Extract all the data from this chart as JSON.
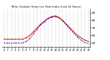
{
  "title": "Milw. Outdoor Temp (vs) Heat Index (Last 24 Hours)",
  "background_color": "#ffffff",
  "grid_color": "#888888",
  "hours": [
    0,
    1,
    2,
    3,
    4,
    5,
    6,
    7,
    8,
    9,
    10,
    11,
    12,
    13,
    14,
    15,
    16,
    17,
    18,
    19,
    20,
    21,
    22,
    23
  ],
  "temp": [
    55,
    55,
    55,
    55,
    55,
    55,
    57,
    60,
    65,
    70,
    75,
    79,
    83,
    85,
    86,
    84,
    80,
    75,
    70,
    65,
    60,
    57,
    54,
    52
  ],
  "heat_index": [
    50,
    50,
    50,
    50,
    50,
    50,
    52,
    56,
    62,
    68,
    74,
    78,
    82,
    84,
    85,
    83,
    79,
    74,
    68,
    63,
    58,
    54,
    51,
    49
  ],
  "temp_color": "#dd0000",
  "heat_color": "#0000cc",
  "ylim": [
    45,
    95
  ],
  "ytick_vals": [
    50,
    60,
    70,
    80,
    90
  ],
  "ytick_labels": [
    "50",
    "60",
    "70",
    "80",
    "90"
  ],
  "linewidth": 0.7,
  "markersize": 1.2
}
